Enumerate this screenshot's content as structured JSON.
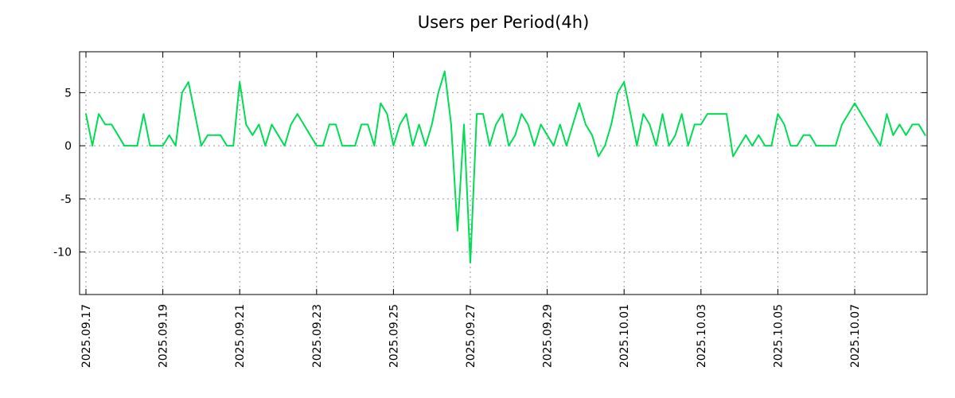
{
  "chart_data": {
    "type": "line",
    "title": "Users per Period(4h)",
    "legend": "none",
    "background": "#ffffff",
    "border_color": "#000000",
    "grid": {
      "style": "dotted",
      "color": "#999999"
    },
    "xlabel": "",
    "ylabel": "",
    "y_ticks": [
      5,
      0,
      -5,
      -10
    ],
    "ylim": [
      -14,
      8.85
    ],
    "x_domain_index": [
      -1,
      131.3
    ],
    "x_tick_labels": [
      "2025.09.17",
      "2025.09.19",
      "2025.09.21",
      "2025.09.23",
      "2025.09.25",
      "2025.09.27",
      "2025.09.29",
      "2025.10.01",
      "2025.10.03",
      "2025.10.05",
      "2025.10.07"
    ],
    "x_tick_indices": [
      0,
      12,
      24,
      36,
      48,
      60,
      72,
      84,
      96,
      108,
      120
    ],
    "series": [
      {
        "name": "users",
        "color": "#00dd55",
        "values": [
          3,
          0,
          3,
          2,
          2,
          1,
          0,
          0,
          0,
          3,
          0,
          0,
          0,
          1,
          0,
          5,
          6,
          3,
          0,
          1,
          1,
          1,
          0,
          0,
          6,
          2,
          1,
          2,
          0,
          2,
          1,
          0,
          2,
          3,
          2,
          1,
          0,
          0,
          2,
          2,
          0,
          0,
          0,
          2,
          2,
          0,
          4,
          3,
          0,
          2,
          3,
          0,
          2,
          0,
          2,
          5,
          7,
          2,
          -8,
          2,
          -11,
          3,
          3,
          0,
          2,
          3,
          0,
          1,
          3,
          2,
          0,
          2,
          1,
          0,
          2,
          0,
          2,
          4,
          2,
          1,
          -1,
          0,
          2,
          5,
          6,
          3,
          0,
          3,
          2,
          0,
          3,
          0,
          1,
          3,
          0,
          2,
          2,
          3,
          3,
          3,
          3,
          -1,
          0,
          1,
          0,
          1,
          0,
          0,
          3,
          2,
          0,
          0,
          1,
          1,
          0,
          0,
          0,
          0,
          2,
          3,
          4,
          3,
          2,
          1,
          0,
          3,
          1,
          2,
          1,
          2,
          2,
          1
        ]
      }
    ]
  }
}
